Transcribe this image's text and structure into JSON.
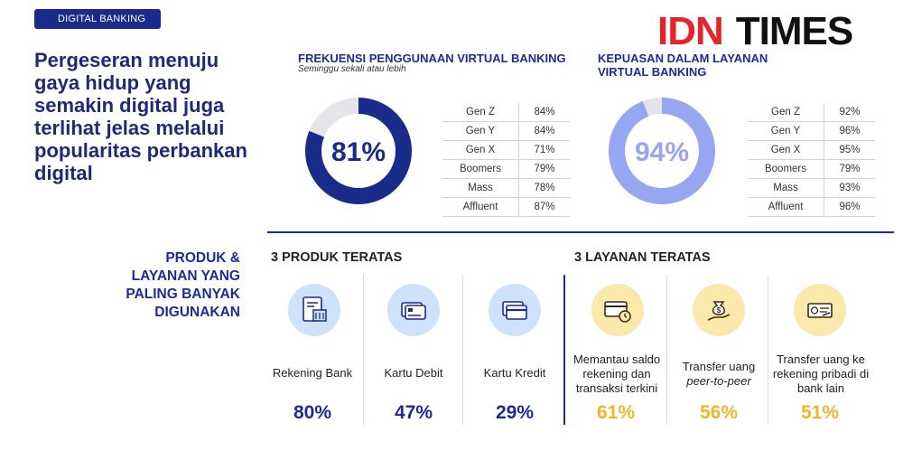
{
  "tag": "DIGITAL BANKING",
  "headline": "Pergeseran menuju gaya hidup yang semakin digital juga terlihat jelas melalui popularitas perbankan digital",
  "brand": {
    "idn": "IDN",
    "times": "TIMES",
    "idn_color": "#e8232d"
  },
  "chart_data": [
    {
      "type": "pie",
      "title": "FREKUENSI PENGGUNAAN VIRTUAL BANKING",
      "subtitle": "Seminggu sekali atau lebih",
      "center_label": "81%",
      "value": 81,
      "color": "#1a2c8a",
      "rest_color": "#e3e5ea",
      "segments": [
        {
          "label": "Gen Z",
          "value": "84%"
        },
        {
          "label": "Gen Y",
          "value": "84%"
        },
        {
          "label": "Gen X",
          "value": "71%"
        },
        {
          "label": "Boomers",
          "value": "79%"
        },
        {
          "label": "Mass",
          "value": "78%"
        },
        {
          "label": "Affluent",
          "value": "87%"
        }
      ]
    },
    {
      "type": "pie",
      "title": "KEPUASAN DALAM LAYANAN VIRTUAL BANKING",
      "center_label": "94%",
      "value": 94,
      "color": "#97a6f0",
      "rest_color": "#e3e5ea",
      "segments": [
        {
          "label": "Gen Z",
          "value": "92%"
        },
        {
          "label": "Gen Y",
          "value": "96%"
        },
        {
          "label": "Gen X",
          "value": "95%"
        },
        {
          "label": "Boomers",
          "value": "79%"
        },
        {
          "label": "Mass",
          "value": "93%"
        },
        {
          "label": "Affluent",
          "value": "96%"
        }
      ]
    },
    {
      "type": "table",
      "title": "3 PRODUK TERATAS",
      "items": [
        {
          "label": "Rekening Bank",
          "value": "80%",
          "icon": "bank-statement-icon"
        },
        {
          "label": "Kartu Debit",
          "value": "47%",
          "icon": "debit-card-icon"
        },
        {
          "label": "Kartu Kredit",
          "value": "29%",
          "icon": "credit-card-icon"
        }
      ],
      "accent": "#1e2a9a"
    },
    {
      "type": "table",
      "title": "3 LAYANAN TERATAS",
      "items": [
        {
          "label": "Memantau saldo rekening dan transaksi terkini",
          "value": "61%",
          "icon": "card-clock-icon"
        },
        {
          "label": "Transfer uang",
          "label_em": "peer-to-peer",
          "value": "56%",
          "icon": "money-bag-hand-icon"
        },
        {
          "label": "Transfer uang ke rekening pribadi di bank lain",
          "value": "51%",
          "icon": "cheque-icon"
        }
      ],
      "accent": "#f1b52a"
    }
  ],
  "left_label": "PRODUK & LAYANAN YANG PALING BANYAK DIGUNAKAN"
}
